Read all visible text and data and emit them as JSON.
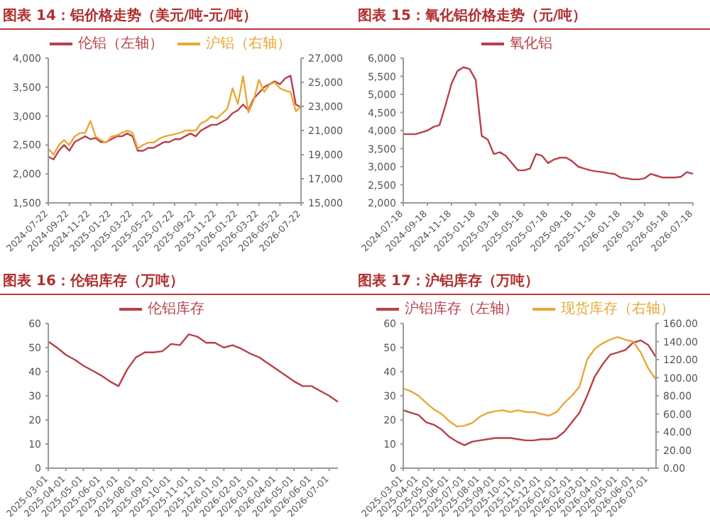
{
  "chart_data": [
    {
      "type": "line",
      "title": "图表 14：铝价格走势（美元/吨-元/吨）",
      "legend": "top",
      "marker": "none",
      "grid": false,
      "categories": [
        "2024-07-22",
        null,
        null,
        null,
        "2024-09-22",
        null,
        null,
        null,
        "2024-11-22",
        null,
        null,
        null,
        "2025-01-22",
        null,
        null,
        null,
        "2025-03-22",
        null,
        null,
        null,
        "2025-05-22",
        null,
        null,
        null,
        "2025-07-22",
        null,
        null,
        null,
        "2025-09-22",
        null,
        null,
        null,
        "2025-11-22",
        null,
        null,
        null,
        "2026-01-22",
        null,
        null,
        null,
        "2026-03-22",
        null,
        null,
        null,
        "2026-05-22",
        null,
        null,
        null,
        "2026-07-22"
      ],
      "series": [
        {
          "name": "伦铝（左轴）",
          "color": "#b8404a",
          "values": [
            2300,
            2250,
            2400,
            2500,
            2400,
            2550,
            2600,
            2650,
            2600,
            2620,
            2550,
            2550,
            2600,
            2650,
            2650,
            2700,
            2650,
            2400,
            2400,
            2450,
            2450,
            2500,
            2550,
            2550,
            2600,
            2600,
            2650,
            2700,
            2650,
            2750,
            2800,
            2850,
            2850,
            2900,
            2950,
            3050,
            3100,
            3200,
            3100,
            3300,
            3400,
            3500,
            3550,
            3600,
            3550,
            3650,
            3700,
            3200,
            3150
          ]
        },
        {
          "name": "沪铝（右轴）",
          "color": "#e8a838",
          "axis": "y2",
          "values": [
            19500,
            19000,
            19800,
            20200,
            19800,
            20500,
            20800,
            20800,
            21800,
            20500,
            20200,
            20000,
            20500,
            20600,
            20800,
            21000,
            20800,
            19500,
            19800,
            20000,
            20000,
            20300,
            20500,
            20600,
            20700,
            20800,
            21000,
            21000,
            21000,
            21600,
            21800,
            22200,
            22000,
            22400,
            22800,
            24500,
            23200,
            25500,
            22500,
            23500,
            25200,
            24200,
            24800,
            25000,
            24500,
            24300,
            24200,
            22600,
            23000
          ]
        }
      ],
      "ylim": [
        1500,
        4000
      ],
      "yticks": [
        {
          "value": 1500,
          "label": "1,500"
        },
        {
          "value": 2000,
          "label": "2,000"
        },
        {
          "value": 2500,
          "label": "2,500"
        },
        {
          "value": 3000,
          "label": "3,000"
        },
        {
          "value": 3500,
          "label": "3,500"
        },
        {
          "value": 4000,
          "label": "4,000"
        }
      ],
      "y2lim": [
        15000,
        27000
      ],
      "y2ticks": [
        {
          "value": 15000,
          "label": "15,000"
        },
        {
          "value": 17000,
          "label": "17,000"
        },
        {
          "value": 19000,
          "label": "19,000"
        },
        {
          "value": 21000,
          "label": "21,000"
        },
        {
          "value": 23000,
          "label": "23,000"
        },
        {
          "value": 25000,
          "label": "25,000"
        },
        {
          "value": 27000,
          "label": "27,000"
        }
      ]
    },
    {
      "type": "line",
      "title": "图表 15：氧化铝价格走势（元/吨）",
      "legend": "top",
      "marker": "none",
      "grid": false,
      "categories": [
        "2024-07-18",
        null,
        null,
        null,
        "2024-09-18",
        null,
        null,
        null,
        "2024-11-18",
        null,
        null,
        null,
        "2025-01-18",
        null,
        null,
        null,
        "2025-03-18",
        null,
        null,
        null,
        "2025-05-18",
        null,
        null,
        null,
        "2025-07-18",
        null,
        null,
        null,
        "2025-09-18",
        null,
        null,
        null,
        "2025-11-18",
        null,
        null,
        null,
        "2026-01-18",
        null,
        null,
        null,
        "2026-03-18",
        null,
        null,
        null,
        "2026-05-18",
        null,
        null,
        null,
        "2026-07-18"
      ],
      "series": [
        {
          "name": "氧化铝",
          "color": "#b8404a",
          "values": [
            3900,
            3900,
            3900,
            3950,
            4000,
            4100,
            4150,
            4700,
            5300,
            5650,
            5750,
            5700,
            5400,
            3850,
            3750,
            3350,
            3400,
            3300,
            3100,
            2900,
            2900,
            2950,
            3350,
            3300,
            3100,
            3200,
            3250,
            3250,
            3150,
            3000,
            2950,
            2900,
            2870,
            2850,
            2820,
            2800,
            2700,
            2680,
            2650,
            2650,
            2680,
            2800,
            2750,
            2700,
            2700,
            2700,
            2720,
            2850,
            2800
          ]
        }
      ],
      "ylim": [
        2000,
        6000
      ],
      "yticks": [
        {
          "value": 2000,
          "label": "2,000"
        },
        {
          "value": 2500,
          "label": "2,500"
        },
        {
          "value": 3000,
          "label": "3,000"
        },
        {
          "value": 3500,
          "label": "3,500"
        },
        {
          "value": 4000,
          "label": "4,000"
        },
        {
          "value": 4500,
          "label": "4,500"
        },
        {
          "value": 5000,
          "label": "5,000"
        },
        {
          "value": 5500,
          "label": "5,500"
        },
        {
          "value": 6000,
          "label": "6,000"
        }
      ]
    },
    {
      "type": "line",
      "title": "图表 16：伦铝库存（万吨）",
      "legend": "top",
      "marker": "none",
      "grid": false,
      "categories": [
        "2025-03-01",
        null,
        "2025-04-01",
        null,
        "2025-05-01",
        null,
        "2025-06-01",
        null,
        "2025-07-01",
        null,
        "2025-08-01",
        null,
        "2025-09-01",
        null,
        "2025-10-01",
        null,
        "2025-11-01",
        null,
        "2025-12-01",
        null,
        "2026-01-01",
        null,
        "2026-02-01",
        null,
        "2026-03-01",
        null,
        "2026-04-01",
        null,
        "2026-05-01",
        null,
        "2026-06-01",
        null,
        "2026-07-01",
        null
      ],
      "series": [
        {
          "name": "伦铝库存",
          "color": "#b8404a",
          "values": [
            52.5,
            50,
            47,
            45,
            42.5,
            40.5,
            38.5,
            36,
            34,
            41,
            46,
            48,
            48,
            48.5,
            51.5,
            51,
            55.5,
            54.5,
            52,
            52,
            50,
            51,
            49.5,
            47.5,
            46,
            43.5,
            41,
            38.5,
            36,
            34,
            34,
            32,
            30,
            27.5
          ]
        }
      ],
      "ylim": [
        0,
        60
      ],
      "yticks": [
        0,
        10,
        20,
        30,
        40,
        50,
        60
      ]
    },
    {
      "type": "line",
      "title": "图表 17：沪铝库存（万吨）",
      "legend": "top",
      "marker": "none",
      "grid": false,
      "categories": [
        "2025-03-01",
        null,
        "2025-04-01",
        null,
        "2025-05-01",
        null,
        "2025-06-01",
        null,
        "2025-07-01",
        null,
        "2025-08-01",
        null,
        "2025-09-01",
        null,
        "2025-10-01",
        null,
        "2025-11-01",
        null,
        "2025-12-01",
        null,
        "2026-01-01",
        null,
        "2026-02-01",
        null,
        "2026-03-01",
        null,
        "2026-04-01",
        null,
        "2026-05-01",
        null,
        "2026-06-01",
        null,
        "2026-07-01",
        null
      ],
      "series": [
        {
          "name": "沪铝库存（左轴）",
          "color": "#b8404a",
          "values": [
            24,
            23,
            22,
            19,
            18,
            16,
            13,
            11,
            9.5,
            11,
            11.5,
            12,
            12.5,
            12.5,
            12.5,
            12,
            11.5,
            11.5,
            12,
            12,
            12.5,
            15,
            19,
            23,
            30,
            38,
            43,
            47,
            48,
            49,
            52,
            53,
            51,
            46
          ]
        },
        {
          "name": "现货库存（右轴）",
          "color": "#e8a838",
          "axis": "y2",
          "values": [
            88,
            85,
            80,
            72,
            65,
            60,
            52,
            46,
            47,
            50,
            57,
            61,
            63,
            64,
            62,
            64,
            62,
            62,
            60,
            58,
            62,
            72,
            80,
            90,
            120,
            132,
            138,
            142,
            145,
            142,
            140,
            128,
            110,
            98
          ]
        }
      ],
      "ylim": [
        0,
        60
      ],
      "yticks": [
        0,
        10,
        20,
        30,
        40,
        50,
        60
      ],
      "y2lim": [
        0,
        160
      ],
      "y2ticks": [
        {
          "value": 0,
          "label": "0.00"
        },
        {
          "value": 20,
          "label": "20.00"
        },
        {
          "value": 40,
          "label": "40.00"
        },
        {
          "value": 60,
          "label": "60.00"
        },
        {
          "value": 80,
          "label": "80.00"
        },
        {
          "value": 100,
          "label": "100.00"
        },
        {
          "value": 120,
          "label": "120.00"
        },
        {
          "value": 140,
          "label": "140.00"
        },
        {
          "value": 160,
          "label": "160.00"
        }
      ]
    }
  ]
}
